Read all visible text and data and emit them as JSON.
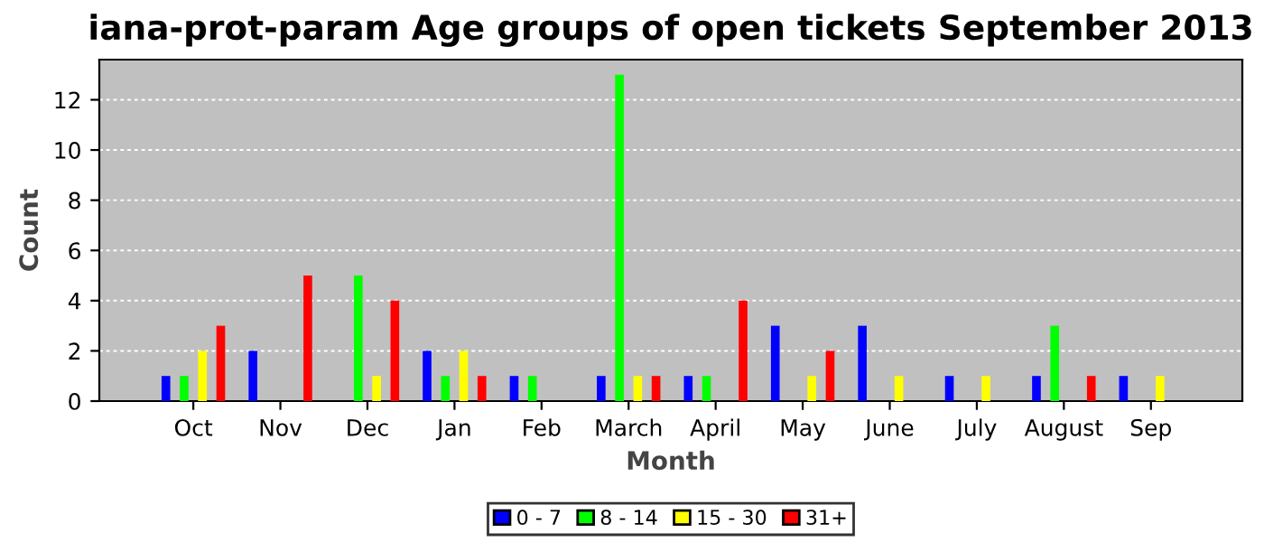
{
  "chart_data": {
    "type": "bar",
    "title": "iana-prot-param Age groups of open tickets September 2013",
    "xlabel": "Month",
    "ylabel": "Count",
    "categories": [
      "Oct",
      "Nov",
      "Dec",
      "Jan",
      "Feb",
      "March",
      "April",
      "May",
      "June",
      "July",
      "August",
      "Sep"
    ],
    "series": [
      {
        "name": "0 - 7",
        "color": "#0000ff",
        "values": [
          1,
          2,
          null,
          2,
          1,
          1,
          1,
          3,
          3,
          1,
          1,
          1
        ]
      },
      {
        "name": "8 - 14",
        "color": "#00ff00",
        "values": [
          1,
          null,
          5,
          1,
          1,
          13,
          1,
          null,
          null,
          null,
          3,
          null
        ]
      },
      {
        "name": "15 - 30",
        "color": "#ffff00",
        "values": [
          2,
          null,
          1,
          2,
          null,
          1,
          null,
          1,
          1,
          1,
          null,
          1
        ]
      },
      {
        "name": "31+",
        "color": "#ff0000",
        "values": [
          3,
          5,
          4,
          1,
          null,
          1,
          4,
          2,
          null,
          null,
          1,
          null
        ]
      }
    ],
    "ylim": [
      0,
      13.6
    ],
    "yticks": [
      0,
      2,
      4,
      6,
      8,
      10,
      12
    ],
    "grid": "y",
    "legend": "bottom"
  }
}
